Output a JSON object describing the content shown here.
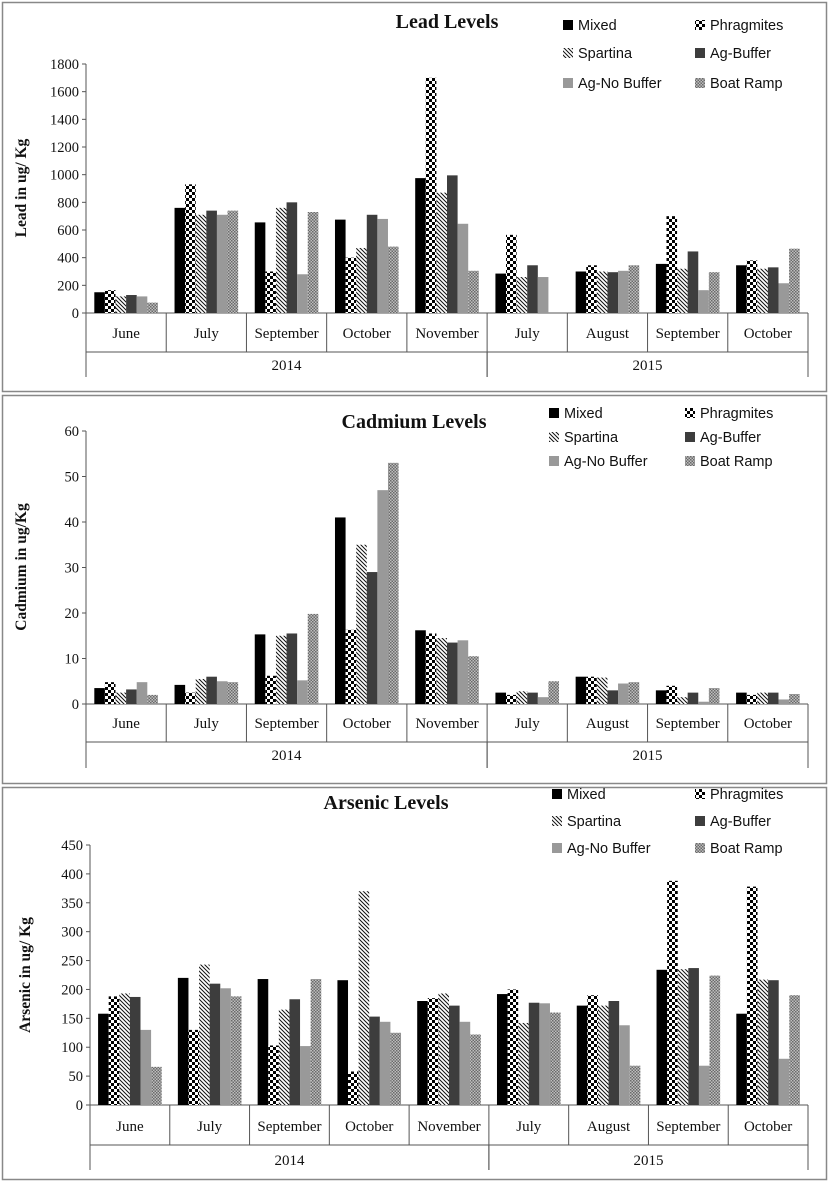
{
  "chart_data": [
    {
      "type": "bar",
      "title": "Lead Levels",
      "ylabel": "Lead in ug/ Kg",
      "xlabel": "",
      "ylim": [
        0,
        1800
      ],
      "yticks": [
        0,
        200,
        400,
        600,
        800,
        1000,
        1200,
        1400,
        1600,
        1800
      ],
      "categories": [
        "June",
        "July",
        "September",
        "October",
        "November",
        "July",
        "August",
        "September",
        "October"
      ],
      "groups": [
        {
          "label": "2014",
          "count": 5
        },
        {
          "label": "2015",
          "count": 4
        }
      ],
      "series": [
        {
          "name": "Mixed",
          "values": [
            150,
            760,
            655,
            675,
            975,
            285,
            300,
            355,
            345
          ]
        },
        {
          "name": "Phragmites",
          "values": [
            165,
            930,
            300,
            400,
            1700,
            565,
            345,
            700,
            380
          ]
        },
        {
          "name": "Spartina",
          "values": [
            120,
            710,
            760,
            470,
            870,
            260,
            300,
            320,
            320
          ]
        },
        {
          "name": "Ag-Buffer",
          "values": [
            130,
            740,
            800,
            710,
            995,
            345,
            295,
            445,
            330
          ]
        },
        {
          "name": "Ag-No Buffer",
          "values": [
            120,
            710,
            280,
            680,
            645,
            260,
            305,
            165,
            215
          ]
        },
        {
          "name": "Boat Ramp",
          "values": [
            75,
            740,
            730,
            480,
            305,
            0,
            345,
            295,
            465
          ]
        }
      ]
    },
    {
      "type": "bar",
      "title": "Cadmium Levels",
      "ylabel": "Cadmium in ug/Kg",
      "xlabel": "",
      "ylim": [
        0,
        60
      ],
      "yticks": [
        0,
        10,
        20,
        30,
        40,
        50,
        60
      ],
      "categories": [
        "June",
        "July",
        "September",
        "October",
        "November",
        "July",
        "August",
        "September",
        "October"
      ],
      "groups": [
        {
          "label": "2014",
          "count": 5
        },
        {
          "label": "2015",
          "count": 4
        }
      ],
      "series": [
        {
          "name": "Mixed",
          "values": [
            3.5,
            4.2,
            15.3,
            41,
            16.2,
            2.5,
            6,
            3,
            2.5
          ]
        },
        {
          "name": "Phragmites",
          "values": [
            4.8,
            2.5,
            6.2,
            16.3,
            15.5,
            2,
            6,
            4,
            2
          ]
        },
        {
          "name": "Spartina",
          "values": [
            2.5,
            5.5,
            15,
            35,
            14.5,
            2.8,
            5.8,
            1.5,
            2.5
          ]
        },
        {
          "name": "Ag-Buffer",
          "values": [
            3.2,
            6,
            15.5,
            29,
            13.5,
            2.5,
            3,
            2.5,
            2.5
          ]
        },
        {
          "name": "Ag-No Buffer",
          "values": [
            4.8,
            5,
            5.2,
            47,
            14,
            1.5,
            4.5,
            0.5,
            1
          ]
        },
        {
          "name": "Boat Ramp",
          "values": [
            2,
            4.8,
            19.8,
            53,
            10.5,
            5,
            4.8,
            3.5,
            2.2
          ]
        }
      ]
    },
    {
      "type": "bar",
      "title": "Arsenic Levels",
      "ylabel": "Arsenic in ug/ Kg",
      "xlabel": "",
      "ylim": [
        0,
        450
      ],
      "yticks": [
        0,
        50,
        100,
        150,
        200,
        250,
        300,
        350,
        400,
        450
      ],
      "categories": [
        "June",
        "July",
        "September",
        "October",
        "November",
        "July",
        "August",
        "September",
        "October"
      ],
      "groups": [
        {
          "label": "2014",
          "count": 5
        },
        {
          "label": "2015",
          "count": 4
        }
      ],
      "series": [
        {
          "name": "Mixed",
          "values": [
            158,
            220,
            218,
            216,
            180,
            192,
            172,
            234,
            158
          ]
        },
        {
          "name": "Phragmites",
          "values": [
            188,
            130,
            103,
            58,
            185,
            200,
            190,
            388,
            378
          ]
        },
        {
          "name": "Spartina",
          "values": [
            193,
            243,
            165,
            370,
            193,
            142,
            172,
            235,
            217
          ]
        },
        {
          "name": "Ag-Buffer",
          "values": [
            187,
            210,
            183,
            153,
            172,
            177,
            180,
            237,
            216
          ]
        },
        {
          "name": "Ag-No Buffer",
          "values": [
            130,
            202,
            102,
            144,
            144,
            176,
            138,
            68,
            80
          ]
        },
        {
          "name": "Boat Ramp",
          "values": [
            66,
            188,
            218,
            125,
            122,
            160,
            68,
            224,
            190
          ]
        }
      ]
    }
  ]
}
